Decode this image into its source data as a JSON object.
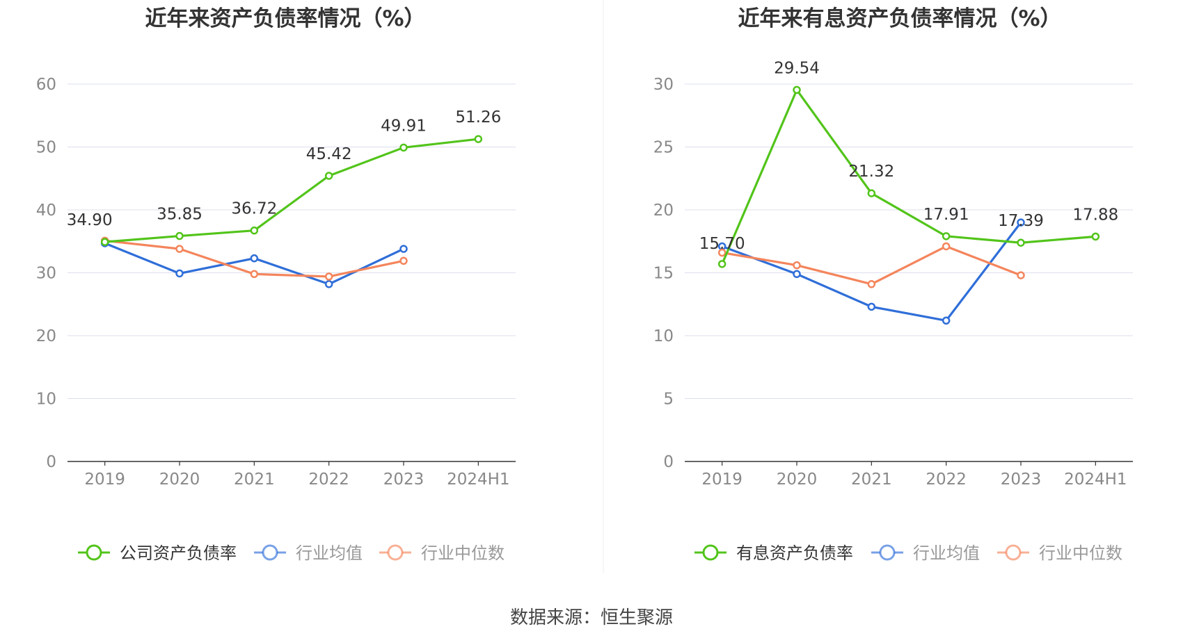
{
  "source_text": "数据来源：恒生聚源",
  "colors": {
    "company": "#52c41a",
    "avg": "#2f6ed8",
    "median": "#f4855c",
    "grid": "#dcdfee",
    "axis": "#333333",
    "tick": "#888888",
    "label": "#333333"
  },
  "chart_data": [
    {
      "type": "line",
      "title": "近年来资产负债率情况（%）",
      "categories": [
        "2019",
        "2020",
        "2021",
        "2022",
        "2023",
        "2024H1"
      ],
      "ylim": [
        0,
        60
      ],
      "yticks": [
        "0",
        "10",
        "20",
        "30",
        "40",
        "50",
        "60"
      ],
      "grid": true,
      "legend_position": "bottom",
      "series": [
        {
          "name": "公司资产负债率",
          "color": "#52c41a",
          "values": [
            34.9,
            35.85,
            36.72,
            45.42,
            49.91,
            51.26
          ],
          "labels": [
            "34.90",
            "35.85",
            "36.72",
            "45.42",
            "49.91",
            "51.26"
          ]
        },
        {
          "name": "行业均值",
          "color": "#2f6ed8",
          "values": [
            34.7,
            29.9,
            32.3,
            28.2,
            33.8,
            null
          ]
        },
        {
          "name": "行业中位数",
          "color": "#f4855c",
          "values": [
            35.1,
            33.8,
            29.8,
            29.4,
            31.9,
            null
          ]
        }
      ]
    },
    {
      "type": "line",
      "title": "近年来有息资产负债率情况（%）",
      "categories": [
        "2019",
        "2020",
        "2021",
        "2022",
        "2023",
        "2024H1"
      ],
      "ylim": [
        0,
        30
      ],
      "yticks": [
        "0",
        "5",
        "10",
        "15",
        "20",
        "25",
        "30"
      ],
      "grid": true,
      "legend_position": "bottom",
      "series": [
        {
          "name": "有息资产负债率",
          "color": "#52c41a",
          "values": [
            15.7,
            29.54,
            21.32,
            17.91,
            17.39,
            17.88
          ],
          "labels": [
            "15.70",
            "29.54",
            "21.32",
            "17.91",
            "17.39",
            "17.88"
          ]
        },
        {
          "name": "行业均值",
          "color": "#2f6ed8",
          "values": [
            17.1,
            14.9,
            12.3,
            11.2,
            19.0,
            null
          ]
        },
        {
          "name": "行业中位数",
          "color": "#f4855c",
          "values": [
            16.6,
            15.6,
            14.1,
            17.1,
            14.8,
            null
          ]
        }
      ]
    }
  ]
}
